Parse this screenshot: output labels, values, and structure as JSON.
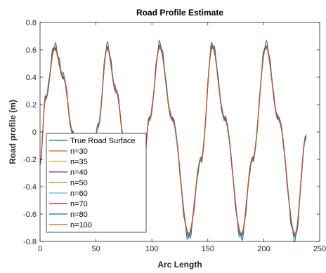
{
  "chart_data": {
    "type": "line",
    "title": "Road Profile Estimate",
    "xlabel": "Arc Length",
    "ylabel": "Road profile (m)",
    "xlim": [
      0,
      250
    ],
    "ylim": [
      -0.8,
      0.8
    ],
    "xticks": [
      0,
      50,
      100,
      150,
      200,
      250
    ],
    "xtick_labels": [
      "0",
      "50",
      "100",
      "150",
      "200",
      "250"
    ],
    "yticks": [
      -0.8,
      -0.6,
      -0.4,
      -0.2,
      0,
      0.2,
      0.4,
      0.6,
      0.8
    ],
    "ytick_labels": [
      "-0.8",
      "-0.6",
      "-0.4",
      "-0.2",
      "0",
      "0.2",
      "0.4",
      "0.6",
      "0.8"
    ],
    "grid": false,
    "legend_position": "bottom-left",
    "series": [
      {
        "name": "True Road Surface",
        "color": "#0072BD",
        "amp_scale": 1.03,
        "ripple": 0.022
      },
      {
        "name": "n=30",
        "color": "#D95319",
        "amp_scale": 0.985,
        "ripple": 0.012
      },
      {
        "name": "n=35",
        "color": "#EDB120",
        "amp_scale": 0.99,
        "ripple": 0.012
      },
      {
        "name": "n=40",
        "color": "#7E2F8E",
        "amp_scale": 0.995,
        "ripple": 0.012
      },
      {
        "name": "n=50",
        "color": "#77AC30",
        "amp_scale": 0.99,
        "ripple": 0.012
      },
      {
        "name": "n=60",
        "color": "#4DBEEE",
        "amp_scale": 0.995,
        "ripple": 0.012
      },
      {
        "name": "n=70",
        "color": "#A2142F",
        "amp_scale": 0.99,
        "ripple": 0.012
      },
      {
        "name": "n=80",
        "color": "#0072BD",
        "amp_scale": 0.995,
        "ripple": 0.012
      },
      {
        "name": "n=100",
        "color": "#D95319",
        "amp_scale": 0.99,
        "ripple": 0.012
      }
    ],
    "base_profile": {
      "x": [
        0,
        5,
        13,
        21,
        29,
        37,
        44,
        52,
        60,
        68,
        76,
        84,
        89,
        98,
        107,
        118,
        133,
        144,
        154,
        165,
        180,
        190,
        202,
        213,
        228,
        238
      ],
      "y": [
        -0.23,
        0.25,
        0.62,
        0.4,
        0.0,
        -0.4,
        -0.6,
        0.05,
        0.62,
        0.3,
        -0.1,
        -0.5,
        -0.6,
        0.1,
        0.63,
        0.1,
        -0.76,
        -0.2,
        0.63,
        0.1,
        -0.76,
        -0.2,
        0.63,
        0.1,
        -0.76,
        -0.03
      ]
    }
  }
}
